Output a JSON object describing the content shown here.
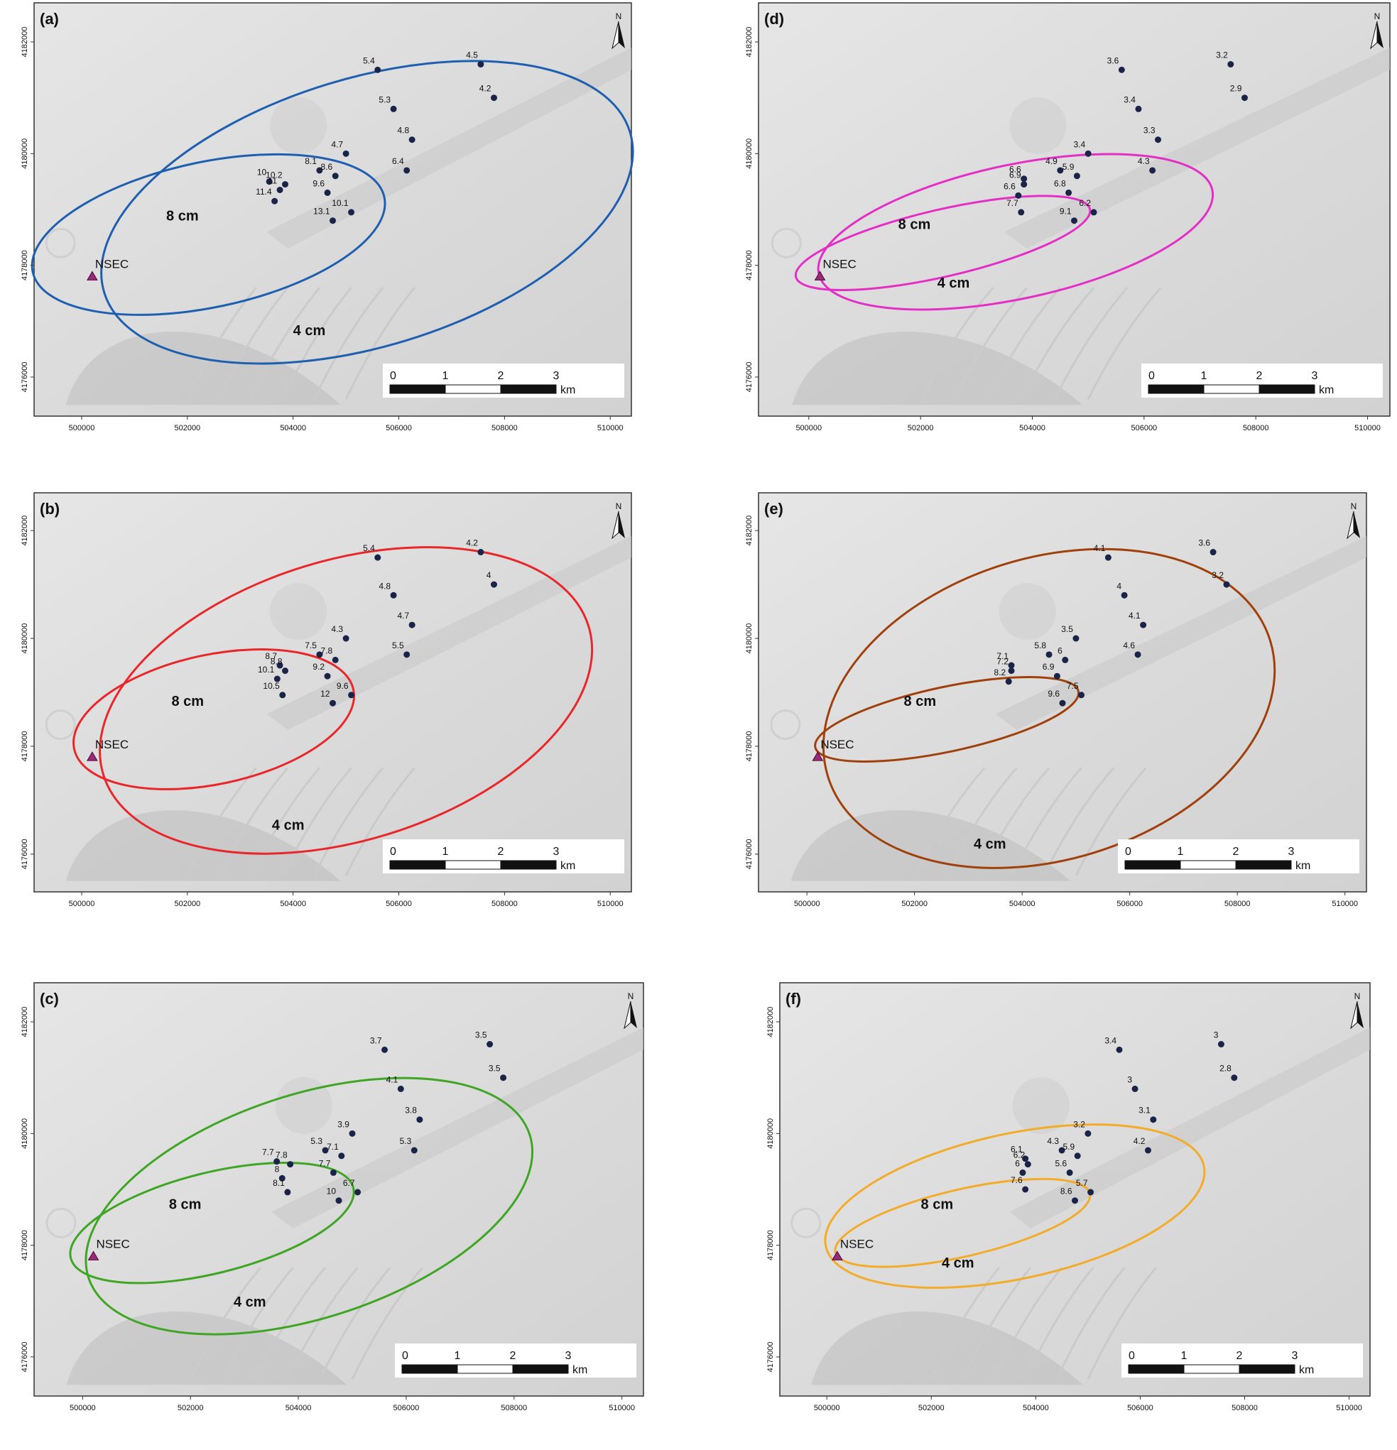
{
  "scale_bar": {
    "labels": [
      "0",
      "1",
      "2",
      "3"
    ],
    "unit": "km"
  },
  "north_label": "N",
  "x_ticks": [
    "500000",
    "502000",
    "504000",
    "506000",
    "508000",
    "510000"
  ],
  "y_ticks": [
    "4176000",
    "4178000",
    "4180000",
    "4182000"
  ],
  "vent_label": "NSEC",
  "contour_labels": {
    "outer": "4 cm",
    "inner": "8 cm"
  },
  "panels": [
    {
      "label": "(a)",
      "color": "#1f5fb0",
      "points": [
        {
          "label": "5.4",
          "e": 505600,
          "n": 4181500
        },
        {
          "label": "4.5",
          "e": 507550,
          "n": 4181600
        },
        {
          "label": "4.2",
          "e": 507800,
          "n": 4181000
        },
        {
          "label": "5.3",
          "e": 505900,
          "n": 4180800
        },
        {
          "label": "4.8",
          "e": 506250,
          "n": 4180250
        },
        {
          "label": "4.7",
          "e": 505000,
          "n": 4180000
        },
        {
          "label": "6.4",
          "e": 506150,
          "n": 4179700
        },
        {
          "label": "8.1",
          "e": 504500,
          "n": 4179700
        },
        {
          "label": "8.6",
          "e": 504800,
          "n": 4179600
        },
        {
          "label": "10",
          "e": 503550,
          "n": 4179500
        },
        {
          "label": "10.2",
          "e": 503850,
          "n": 4179450
        },
        {
          "label": "9.6",
          "e": 504650,
          "n": 4179300
        },
        {
          "label": "11",
          "e": 503750,
          "n": 4179350
        },
        {
          "label": "11.4",
          "e": 503650,
          "n": 4179150
        },
        {
          "label": "10.1",
          "e": 505100,
          "n": 4178950
        },
        {
          "label": "13.1",
          "e": 504750,
          "n": 4178800
        }
      ],
      "vent": {
        "e": 500200,
        "n": 4177800
      },
      "outer": {
        "cx": 505400,
        "cy": 4178950,
        "rx": 5200,
        "ry": 2400,
        "rot": -17
      },
      "inner": {
        "cx": 502400,
        "cy": 4178550,
        "rx": 3400,
        "ry": 1300,
        "rot": -12
      }
    },
    {
      "label": "(b)",
      "color": "#e8272b",
      "points": [
        {
          "label": "5.4",
          "e": 505600,
          "n": 4181500
        },
        {
          "label": "4.2",
          "e": 507550,
          "n": 4181600
        },
        {
          "label": "4",
          "e": 507800,
          "n": 4181000
        },
        {
          "label": "4.8",
          "e": 505900,
          "n": 4180800
        },
        {
          "label": "4.7",
          "e": 506250,
          "n": 4180250
        },
        {
          "label": "4.3",
          "e": 505000,
          "n": 4180000
        },
        {
          "label": "5.5",
          "e": 506150,
          "n": 4179700
        },
        {
          "label": "7.5",
          "e": 504500,
          "n": 4179700
        },
        {
          "label": "7.8",
          "e": 504800,
          "n": 4179600
        },
        {
          "label": "8.7",
          "e": 503750,
          "n": 4179500
        },
        {
          "label": "8.8",
          "e": 503850,
          "n": 4179400
        },
        {
          "label": "9.2",
          "e": 504650,
          "n": 4179300
        },
        {
          "label": "10.1",
          "e": 503700,
          "n": 4179250
        },
        {
          "label": "9.6",
          "e": 505100,
          "n": 4178950
        },
        {
          "label": "10.5",
          "e": 503800,
          "n": 4178950
        },
        {
          "label": "12",
          "e": 504750,
          "n": 4178800
        }
      ],
      "vent": {
        "e": 500200,
        "n": 4177800
      },
      "outer": {
        "cx": 505000,
        "cy": 4178850,
        "rx": 4800,
        "ry": 2600,
        "rot": -17
      },
      "inner": {
        "cx": 502500,
        "cy": 4178500,
        "rx": 2700,
        "ry": 1200,
        "rot": -12
      }
    },
    {
      "label": "(c)",
      "color": "#3fa524",
      "points": [
        {
          "label": "3.7",
          "e": 505600,
          "n": 4181500
        },
        {
          "label": "3.5",
          "e": 507550,
          "n": 4181600
        },
        {
          "label": "3.5",
          "e": 507800,
          "n": 4181000
        },
        {
          "label": "4.1",
          "e": 505900,
          "n": 4180800
        },
        {
          "label": "3.8",
          "e": 506250,
          "n": 4180250
        },
        {
          "label": "3.9",
          "e": 505000,
          "n": 4180000
        },
        {
          "label": "5.3",
          "e": 506150,
          "n": 4179700
        },
        {
          "label": "5.3",
          "e": 504500,
          "n": 4179700
        },
        {
          "label": "7.1",
          "e": 504800,
          "n": 4179600
        },
        {
          "label": "7.7",
          "e": 503600,
          "n": 4179500
        },
        {
          "label": "7.8",
          "e": 503850,
          "n": 4179450
        },
        {
          "label": "7.7",
          "e": 504650,
          "n": 4179300
        },
        {
          "label": "8",
          "e": 503700,
          "n": 4179200
        },
        {
          "label": "6.7",
          "e": 505100,
          "n": 4178950
        },
        {
          "label": "8.1",
          "e": 503800,
          "n": 4178950
        },
        {
          "label": "10",
          "e": 504750,
          "n": 4178800
        }
      ],
      "vent": {
        "e": 500200,
        "n": 4177800
      },
      "outer": {
        "cx": 504200,
        "cy": 4178700,
        "rx": 4300,
        "ry": 2000,
        "rot": -18
      },
      "inner": {
        "cx": 502400,
        "cy": 4178400,
        "rx": 2700,
        "ry": 900,
        "rot": -14
      }
    },
    {
      "label": "(d)",
      "color": "#e42fc6",
      "points": [
        {
          "label": "3.6",
          "e": 505600,
          "n": 4181500
        },
        {
          "label": "3.2",
          "e": 507550,
          "n": 4181600
        },
        {
          "label": "2.9",
          "e": 507800,
          "n": 4181000
        },
        {
          "label": "3.4",
          "e": 505900,
          "n": 4180800
        },
        {
          "label": "3.3",
          "e": 506250,
          "n": 4180250
        },
        {
          "label": "3.4",
          "e": 505000,
          "n": 4180000
        },
        {
          "label": "4.3",
          "e": 506150,
          "n": 4179700
        },
        {
          "label": "4.9",
          "e": 504500,
          "n": 4179700
        },
        {
          "label": "5.9",
          "e": 504800,
          "n": 4179600
        },
        {
          "label": "6.6",
          "e": 503850,
          "n": 4179550
        },
        {
          "label": "6.9",
          "e": 503850,
          "n": 4179450
        },
        {
          "label": "6.8",
          "e": 504650,
          "n": 4179300
        },
        {
          "label": "6.6",
          "e": 503750,
          "n": 4179250
        },
        {
          "label": "6.2",
          "e": 505100,
          "n": 4178950
        },
        {
          "label": "7.7",
          "e": 503800,
          "n": 4178950
        },
        {
          "label": "9.1",
          "e": 504750,
          "n": 4178800
        }
      ],
      "vent": {
        "e": 500200,
        "n": 4177800
      },
      "outer": {
        "cx": 503700,
        "cy": 4178600,
        "rx": 3600,
        "ry": 1200,
        "rot": -12
      },
      "inner": {
        "cx": 502400,
        "cy": 4178400,
        "rx": 2700,
        "ry": 600,
        "rot": -13
      }
    },
    {
      "label": "(e)",
      "color": "#a0400c",
      "points": [
        {
          "label": "4.1",
          "e": 505600,
          "n": 4181500
        },
        {
          "label": "3.6",
          "e": 507550,
          "n": 4181600
        },
        {
          "label": "3.2",
          "e": 507800,
          "n": 4181000
        },
        {
          "label": "4",
          "e": 505900,
          "n": 4180800
        },
        {
          "label": "4.1",
          "e": 506250,
          "n": 4180250
        },
        {
          "label": "3.5",
          "e": 505000,
          "n": 4180000
        },
        {
          "label": "4.6",
          "e": 506150,
          "n": 4179700
        },
        {
          "label": "5.8",
          "e": 504500,
          "n": 4179700
        },
        {
          "label": "6",
          "e": 504800,
          "n": 4179600
        },
        {
          "label": "7.1",
          "e": 503800,
          "n": 4179500
        },
        {
          "label": "7.2",
          "e": 503800,
          "n": 4179400
        },
        {
          "label": "6.9",
          "e": 504650,
          "n": 4179300
        },
        {
          "label": "8.2",
          "e": 503750,
          "n": 4179200
        },
        {
          "label": "7.5",
          "e": 505100,
          "n": 4178950
        },
        {
          "label": "9.6",
          "e": 504750,
          "n": 4178800
        }
      ],
      "vent": {
        "e": 500200,
        "n": 4177800
      },
      "outer": {
        "cx": 504500,
        "cy": 4178700,
        "rx": 4300,
        "ry": 2800,
        "rot": -17
      },
      "inner": {
        "cx": 502600,
        "cy": 4178500,
        "rx": 2500,
        "ry": 600,
        "rot": -12
      }
    },
    {
      "label": "(f)",
      "color": "#f2ac2a",
      "points": [
        {
          "label": "3.4",
          "e": 505600,
          "n": 4181500
        },
        {
          "label": "3",
          "e": 507550,
          "n": 4181600
        },
        {
          "label": "2.8",
          "e": 507800,
          "n": 4181000
        },
        {
          "label": "3",
          "e": 505900,
          "n": 4180800
        },
        {
          "label": "3.1",
          "e": 506250,
          "n": 4180250
        },
        {
          "label": "3.2",
          "e": 505000,
          "n": 4180000
        },
        {
          "label": "4.2",
          "e": 506150,
          "n": 4179700
        },
        {
          "label": "4.3",
          "e": 504500,
          "n": 4179700
        },
        {
          "label": "5.9",
          "e": 504800,
          "n": 4179600
        },
        {
          "label": "6.1",
          "e": 503800,
          "n": 4179550
        },
        {
          "label": "6.2",
          "e": 503850,
          "n": 4179450
        },
        {
          "label": "5.6",
          "e": 504650,
          "n": 4179300
        },
        {
          "label": "6",
          "e": 503750,
          "n": 4179300
        },
        {
          "label": "5.7",
          "e": 505050,
          "n": 4178950
        },
        {
          "label": "7.6",
          "e": 503800,
          "n": 4179000
        },
        {
          "label": "8.6",
          "e": 504750,
          "n": 4178800
        }
      ],
      "vent": {
        "e": 500200,
        "n": 4177800
      },
      "outer": {
        "cx": 503600,
        "cy": 4178700,
        "rx": 3700,
        "ry": 1300,
        "rot": -12
      },
      "inner": {
        "cx": 502600,
        "cy": 4178400,
        "rx": 2500,
        "ry": 600,
        "rot": -13
      }
    }
  ]
}
